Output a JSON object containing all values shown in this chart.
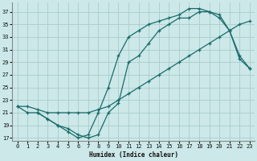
{
  "xlabel": "Humidex (Indice chaleur)",
  "bg_color": "#cce8e8",
  "grid_color": "#aacccc",
  "line_color": "#1a6b6b",
  "xlim": [
    -0.5,
    23.5
  ],
  "ylim": [
    16.5,
    38.5
  ],
  "xticks": [
    0,
    1,
    2,
    3,
    4,
    5,
    6,
    7,
    8,
    9,
    10,
    11,
    12,
    13,
    14,
    15,
    16,
    17,
    18,
    19,
    20,
    21,
    22,
    23
  ],
  "yticks": [
    17,
    19,
    21,
    23,
    25,
    27,
    29,
    31,
    33,
    35,
    37
  ],
  "curve1_x": [
    0,
    1,
    2,
    3,
    4,
    5,
    6,
    7,
    8,
    9,
    10,
    11,
    12,
    13,
    14,
    15,
    16,
    17,
    18,
    19,
    20,
    21,
    22,
    23
  ],
  "curve1_y": [
    22,
    21,
    21,
    20,
    19,
    18,
    17,
    17.5,
    21,
    25,
    30,
    33,
    34,
    35,
    35.5,
    36,
    36.5,
    37.5,
    37.5,
    37,
    36,
    34,
    29.5,
    28
  ],
  "curve2_x": [
    0,
    1,
    2,
    3,
    4,
    5,
    6,
    7,
    8,
    9,
    10,
    11,
    12,
    13,
    14,
    15,
    16,
    17,
    18,
    19,
    20,
    21,
    22,
    23
  ],
  "curve2_y": [
    22,
    22,
    21.5,
    21,
    21,
    21,
    21,
    21,
    21.5,
    22,
    23,
    24,
    25,
    26,
    27,
    28,
    29,
    30,
    31,
    32,
    33,
    34,
    35,
    35.5
  ],
  "curve3_x": [
    2,
    3,
    4,
    5,
    6,
    7,
    8,
    9,
    10,
    11,
    12,
    13,
    14,
    15,
    16,
    17,
    18,
    19,
    20,
    21,
    22,
    23
  ],
  "curve3_y": [
    21,
    20,
    19,
    18.5,
    17.5,
    17,
    17.5,
    21,
    22.5,
    29,
    30,
    32,
    34,
    35,
    36,
    36,
    37,
    37,
    36.5,
    34,
    30,
    28
  ]
}
